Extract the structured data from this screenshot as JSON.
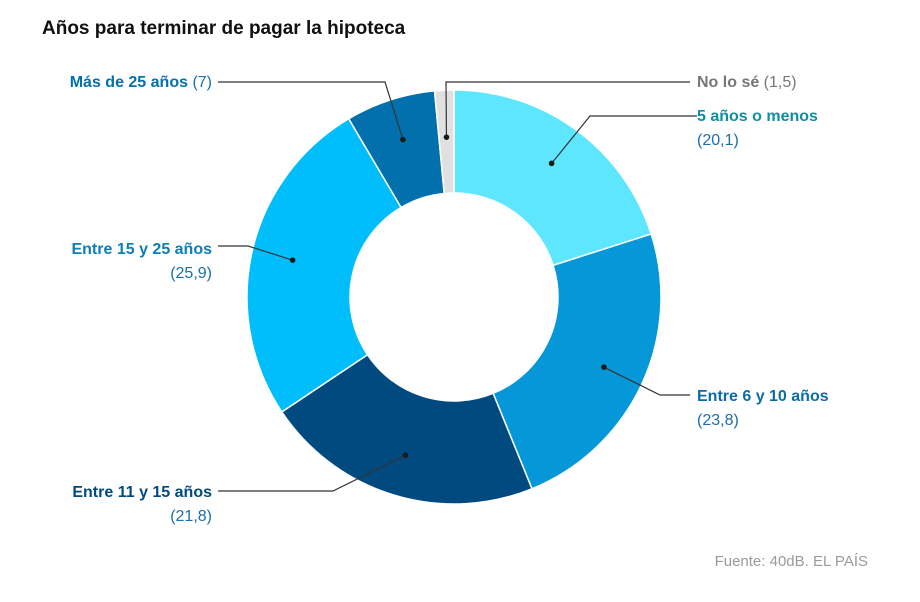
{
  "chart_data": {
    "type": "pie",
    "variant": "donut",
    "title": "Años para terminar de pagar la hipoteca",
    "unit": "%",
    "slices": [
      {
        "label": "5 años o menos",
        "value": 20.1,
        "value_text": "(20,1)",
        "color": "#5fe6ff",
        "label_color": "#0d8f9f"
      },
      {
        "label": "Entre 6 y 10 años",
        "value": 23.8,
        "value_text": "(23,8)",
        "color": "#0597d7",
        "label_color": "#0a6da6"
      },
      {
        "label": "Entre 11 y 15 años",
        "value": 21.8,
        "value_text": "(21,8)",
        "color": "#004a80",
        "label_color": "#004a80"
      },
      {
        "label": "Entre 15 y 25 años",
        "value": 25.9,
        "value_text": "(25,9)",
        "color": "#00bdfc",
        "label_color": "#0a7fb5"
      },
      {
        "label": "Más de 25 años",
        "value": 7,
        "value_text": "(7)",
        "color": "#0270ad",
        "label_color": "#0270ad"
      },
      {
        "label": "No lo sé",
        "value": 1.5,
        "value_text": "(1,5)",
        "color": "#e0e0e0",
        "label_color": "#777777"
      }
    ],
    "start": "top",
    "direction": "clockwise",
    "legend": "none (direct labels)"
  },
  "source": "Fuente: 40dB. EL PAÍS",
  "colors": {
    "leader_line": "#333333",
    "slice_border": "#ffffff",
    "value_text": "#1b6fa8",
    "title": "#111111",
    "source": "#9a9a9a"
  }
}
